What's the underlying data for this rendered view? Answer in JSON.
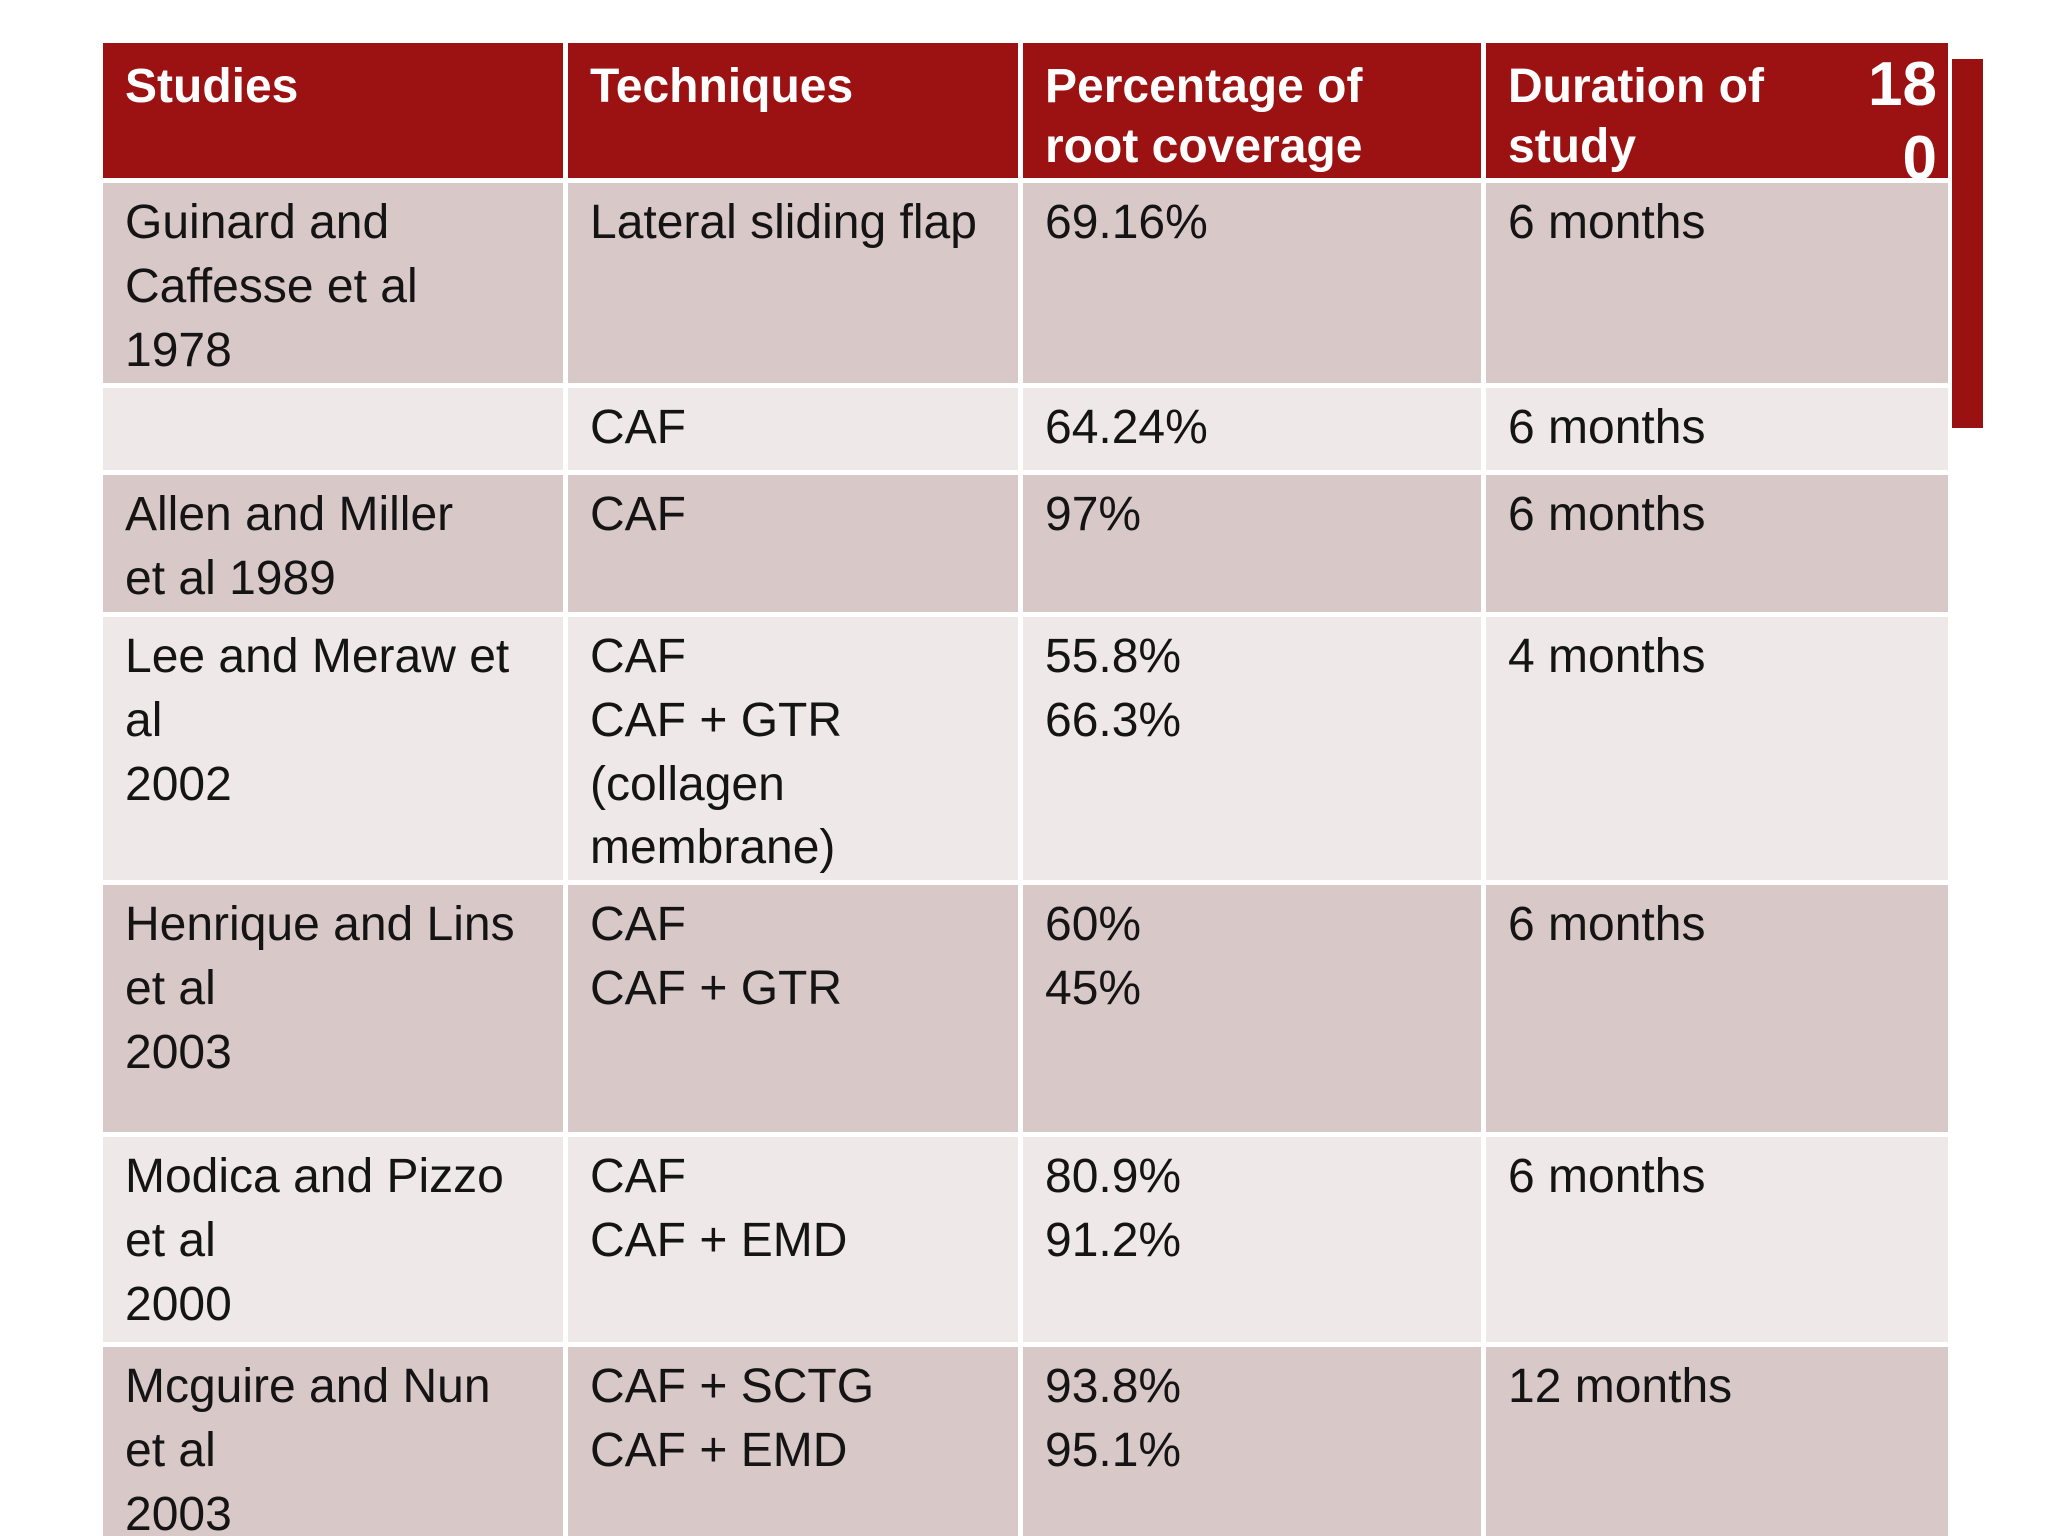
{
  "page": {
    "number": "180"
  },
  "colors": {
    "header_bg": "#9c1212",
    "header_text": "#ffffff",
    "row_dark": "#d9c8c8",
    "row_light": "#efe8e8",
    "body_text": "#141414",
    "accent_bar": "#9a1111",
    "slide_bg": "#ffffff"
  },
  "table": {
    "columns": [
      {
        "label": "Studies"
      },
      {
        "label": "Techniques"
      },
      {
        "label": "Percentage of\nroot coverage"
      },
      {
        "label": "Duration of\nstudy"
      }
    ],
    "rows": [
      {
        "shade": "dark",
        "study": "Guinard and\nCaffesse et al\n1978",
        "technique": "Lateral sliding flap",
        "coverage": "69.16%",
        "duration": "6 months"
      },
      {
        "shade": "light",
        "study": "",
        "technique": "CAF",
        "coverage": "64.24%",
        "duration": "6 months"
      },
      {
        "shade": "dark",
        "study": "Allen and Miller\net al 1989",
        "technique": "CAF",
        "coverage": "97%",
        "duration": "6 months"
      },
      {
        "shade": "light",
        "study": "Lee and Meraw et\nal\n2002",
        "technique": "CAF\nCAF + GTR\n(collagen\nmembrane)",
        "coverage": "55.8%\n66.3%",
        "duration": "4 months"
      },
      {
        "shade": "dark",
        "study": "Henrique and Lins\net al\n2003",
        "technique": "CAF\nCAF + GTR",
        "coverage": "60%\n45%",
        "duration": "6 months"
      },
      {
        "shade": "light",
        "study": "Modica and Pizzo\net al\n2000",
        "technique": "CAF\nCAF + EMD",
        "coverage": "80.9%\n91.2%",
        "duration": "6 months"
      },
      {
        "shade": "dark",
        "study": "Mcguire and Nun\net al\n2003",
        "technique": "CAF + SCTG\nCAF + EMD",
        "coverage": "93.8%\n95.1%",
        "duration": "12 months"
      }
    ]
  }
}
